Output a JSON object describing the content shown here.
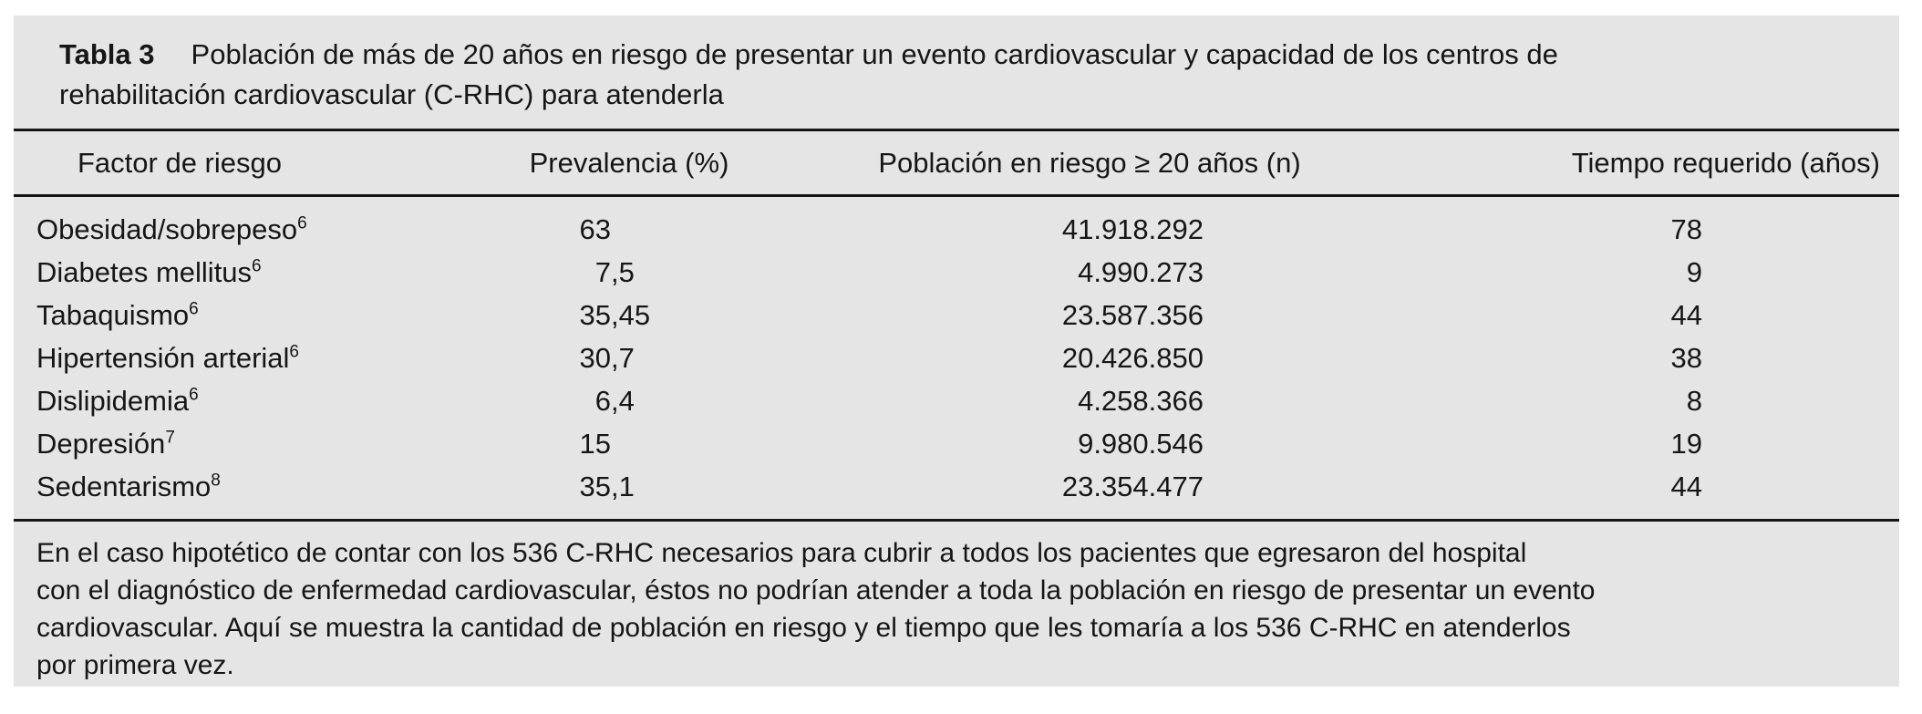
{
  "table": {
    "label": "Tabla 3",
    "title_line1": "Población de más de 20 años en riesgo de presentar un evento cardiovascular y capacidad de los centros de",
    "title_line2": "rehabilitación cardiovascular (C-RHC) para atenderla",
    "columns": [
      "Factor de riesgo",
      "Prevalencia (%)",
      "Población en riesgo ≥ 20 años (n)",
      "Tiempo requerido (años)"
    ],
    "rows": [
      {
        "factor": "Obesidad/sobrepeso",
        "ref": "6",
        "prevalencia": "63",
        "poblacion": "41.918.292",
        "tiempo": "78"
      },
      {
        "factor": "Diabetes mellitus",
        "ref": "6",
        "prevalencia": "7,5",
        "poblacion": "4.990.273",
        "tiempo": "9"
      },
      {
        "factor": "Tabaquismo",
        "ref": "6",
        "prevalencia": "35,45",
        "poblacion": "23.587.356",
        "tiempo": "44"
      },
      {
        "factor": "Hipertensión arterial",
        "ref": "6",
        "prevalencia": "30,7",
        "poblacion": "20.426.850",
        "tiempo": "38"
      },
      {
        "factor": "Dislipidemia",
        "ref": "6",
        "prevalencia": "6,4",
        "poblacion": "4.258.366",
        "tiempo": "8"
      },
      {
        "factor": "Depresión",
        "ref": "7",
        "prevalencia": "15",
        "poblacion": "9.980.546",
        "tiempo": "19"
      },
      {
        "factor": "Sedentarismo",
        "ref": "8",
        "prevalencia": "35,1",
        "poblacion": "23.354.477",
        "tiempo": "44"
      }
    ],
    "footnote_lines": [
      "En el caso hipotético de contar con los 536 C-RHC necesarios para cubrir a todos los pacientes que egresaron del hospital",
      "con el diagnóstico de enfermedad cardiovascular, éstos no podrían atender a toda la población en riesgo de presentar un evento",
      "cardiovascular. Aquí se muestra la cantidad de población en riesgo y el tiempo que les tomaría a los 536 C-RHC en atenderlos",
      "por primera vez."
    ],
    "colors": {
      "panel_bg": "#e5e5e5",
      "text": "#161616",
      "rule": "#161616"
    }
  }
}
